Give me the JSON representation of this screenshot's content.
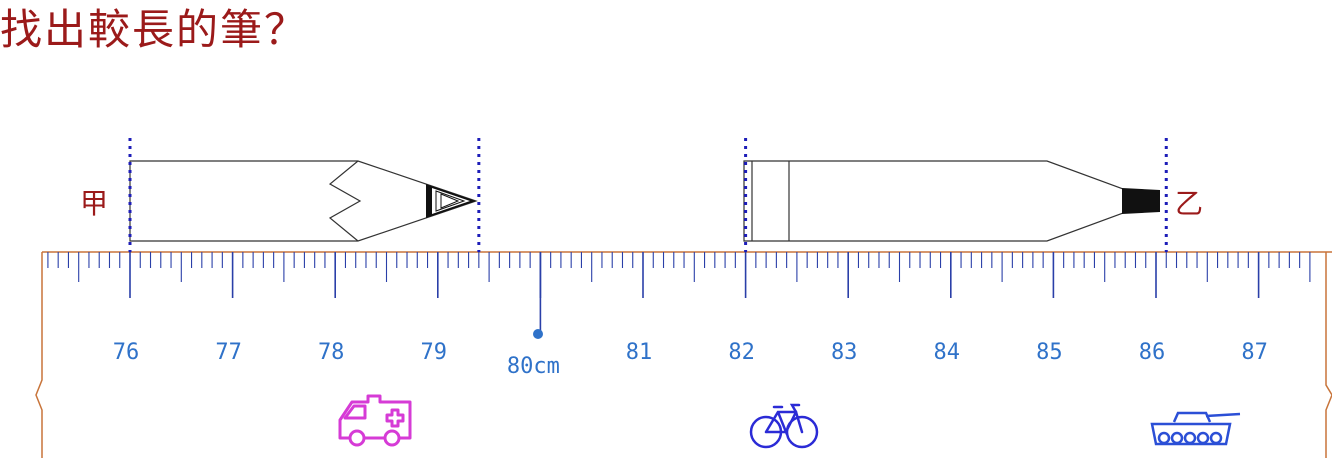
{
  "title": "找出較長的筆？",
  "pencils": {
    "a": {
      "label": "甲",
      "start": 76,
      "end": 79.4
    },
    "b": {
      "label": "乙",
      "start": 82,
      "end": 86.1
    }
  },
  "ruler": {
    "tick_labels": [
      "76",
      "77",
      "78",
      "79",
      "80cm",
      "81",
      "82",
      "83",
      "84",
      "85",
      "86",
      "87"
    ],
    "unit": "cm"
  },
  "icons": [
    "ambulance-icon",
    "bicycle-icon",
    "tank-icon"
  ],
  "colors": {
    "title": "#9b1a1a",
    "ruler_border": "#c8743a",
    "ticks": "#2a3fa8",
    "tick_labels": "#2f72c9",
    "guides": "#1d1db8",
    "ambulance": "#d63bd6",
    "bicycle": "#2b2bd6",
    "tank": "#2b4fd6"
  }
}
